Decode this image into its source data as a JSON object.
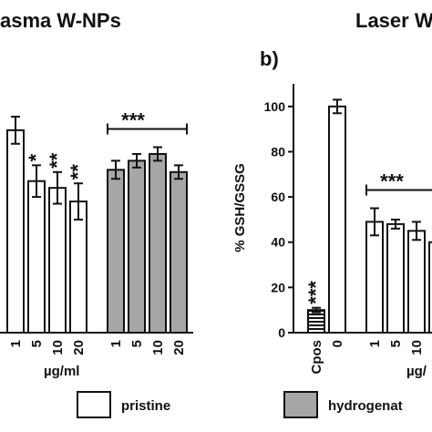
{
  "chart_data": [
    {
      "type": "bar",
      "title": "asma W-NPs",
      "x_label": "µg/ml",
      "categories": [
        "1",
        "5",
        "10",
        "20",
        "1",
        "5",
        "10",
        "20"
      ],
      "series": [
        {
          "name": "pristine",
          "color": "#ffffff",
          "values": [
            89.5,
            67,
            64,
            58,
            null,
            null,
            null,
            null
          ],
          "errors": [
            6,
            7,
            7,
            8,
            null,
            null,
            null,
            null
          ]
        },
        {
          "name": "hydrogenat",
          "color": "#a6a6a6",
          "values": [
            null,
            null,
            null,
            null,
            72,
            76,
            79,
            71
          ],
          "errors": [
            null,
            null,
            null,
            null,
            4,
            3,
            3,
            3
          ]
        }
      ],
      "bar_labels": [
        null,
        "*",
        "**",
        "**",
        null,
        null,
        null,
        null
      ],
      "bracket_label": "***",
      "ylim": [
        0,
        110
      ]
    },
    {
      "type": "bar",
      "title": "Laser W",
      "panel_label": "b)",
      "x_label": "µg/",
      "y_label": "% GSH/GSSG",
      "categories": [
        "Cpos",
        "0",
        "1",
        "5",
        "10",
        "2"
      ],
      "values": [
        10,
        100,
        49,
        48,
        45,
        40
      ],
      "errors": [
        1,
        3,
        6,
        2,
        4,
        3
      ],
      "color": "#ffffff",
      "bar_labels": [
        "***",
        null,
        null,
        null,
        null,
        null
      ],
      "bracket_label": "***",
      "ylim": [
        0,
        110
      ],
      "yticks": [
        0,
        20,
        40,
        60,
        80,
        100
      ]
    }
  ]
}
